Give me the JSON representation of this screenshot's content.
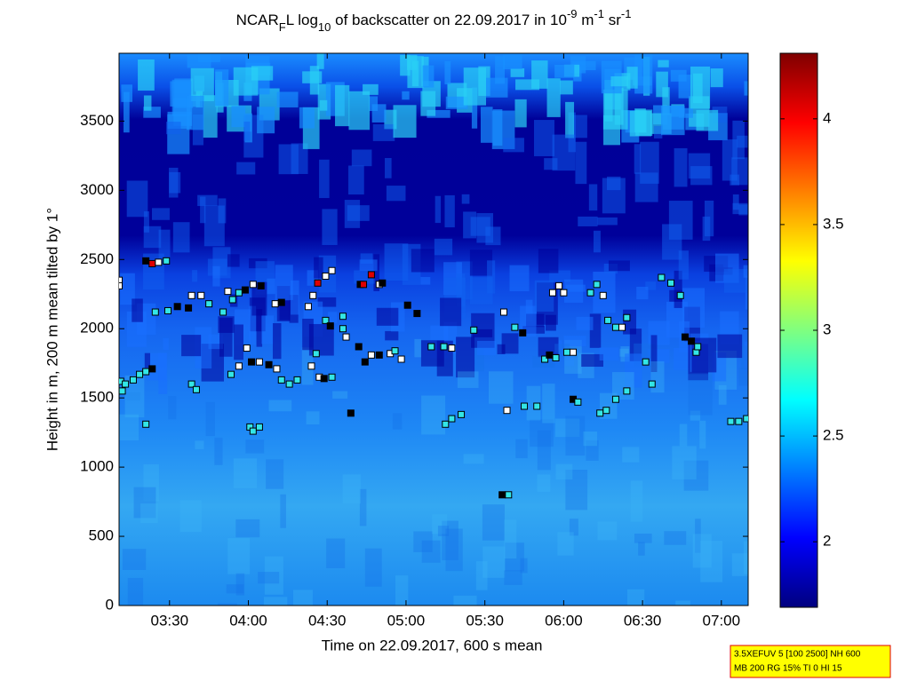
{
  "chart_data": {
    "type": "heatmap-scatter",
    "title": [
      {
        "text": "NCAR",
        "shift": "baseline"
      },
      {
        "text": "F",
        "shift": "sub"
      },
      {
        "text": "L log",
        "shift": "baseline"
      },
      {
        "text": "10",
        "shift": "sub"
      },
      {
        "text": " of backscatter on 22.09.2017 in 10",
        "shift": "baseline"
      },
      {
        "text": "-9",
        "shift": "super"
      },
      {
        "text": " m",
        "shift": "baseline"
      },
      {
        "text": "-1",
        "shift": "super"
      },
      {
        "text": " sr",
        "shift": "baseline"
      },
      {
        "text": "-1",
        "shift": "super"
      }
    ],
    "x_label": "Time on 22.09.2017, 600 s mean",
    "y_label": "Height in m, 200 m mean tilted by 1°",
    "xlim": [
      3.18,
      7.17
    ],
    "xticks": [
      {
        "value": 3.5,
        "label": "03:30"
      },
      {
        "value": 4,
        "label": "04:00"
      },
      {
        "value": 4.5,
        "label": "04:30"
      },
      {
        "value": 5,
        "label": "05:00"
      },
      {
        "value": 5.5,
        "label": "05:30"
      },
      {
        "value": 6,
        "label": "06:00"
      },
      {
        "value": 6.5,
        "label": "06:30"
      },
      {
        "value": 7,
        "label": "07:00"
      }
    ],
    "ylim": [
      0,
      3990
    ],
    "yticks": [
      0,
      500,
      1000,
      1500,
      2000,
      2500,
      3000,
      3500
    ],
    "colorbar": {
      "lim": [
        1.69,
        4.31
      ],
      "ticks": [
        2,
        2.5,
        3,
        3.5,
        4
      ],
      "colormap": "jet"
    },
    "points": {
      "x": [
        3.18,
        3.18,
        3.19,
        3.2,
        3.22,
        3.27,
        3.31,
        3.35,
        3.39,
        3.35,
        3.35,
        3.39,
        3.43,
        3.48,
        3.41,
        3.49,
        3.55,
        3.62,
        3.64,
        3.7,
        3.75,
        3.64,
        3.67,
        3.84,
        3.87,
        3.9,
        3.94,
        3.98,
        4.03,
        4.08,
        3.99,
        4.02,
        4.07,
        4.13,
        4.18,
        3.89,
        3.94,
        4.01,
        4.03,
        4.07,
        4.21,
        4.26,
        4.31,
        4.17,
        4.21,
        4.38,
        4.41,
        4.44,
        4.49,
        4.53,
        4.43,
        4.4,
        4.45,
        4.48,
        4.53,
        4.49,
        4.52,
        4.6,
        4.6,
        4.62,
        4.65,
        4.71,
        4.73,
        4.78,
        4.83,
        4.85,
        4.7,
        4.74,
        4.78,
        4.83,
        4.9,
        4.97,
        4.93,
        5.01,
        5.07,
        5.16,
        5.24,
        5.29,
        5.25,
        5.29,
        5.35,
        5.43,
        5.62,
        5.61,
        5.65,
        5.64,
        5.69,
        5.74,
        5.75,
        5.83,
        5.88,
        5.91,
        5.95,
        6.02,
        6.06,
        5.93,
        5.97,
        6.0,
        6.06,
        6.09,
        6.17,
        6.21,
        6.25,
        6.28,
        6.33,
        6.37,
        6.4,
        6.23,
        6.27,
        6.33,
        6.4,
        6.52,
        6.56,
        6.62,
        6.68,
        6.74,
        6.77,
        6.81,
        6.84,
        6.85,
        7.06,
        7.11,
        7.16
      ],
      "y": [
        2350,
        2310,
        1620,
        1550,
        1600,
        1630,
        1670,
        1690,
        1710,
        1310,
        2490,
        2470,
        2480,
        2490,
        2120,
        2130,
        2160,
        2150,
        2240,
        2240,
        2180,
        1600,
        1560,
        2120,
        2270,
        2210,
        2260,
        2280,
        2320,
        2310,
        1860,
        1760,
        1760,
        1740,
        1710,
        1670,
        1730,
        1290,
        1260,
        1290,
        1630,
        1600,
        1630,
        2180,
        2190,
        2160,
        2240,
        2330,
        2380,
        2420,
        1820,
        1730,
        1650,
        1640,
        1650,
        2060,
        2020,
        2090,
        2000,
        1940,
        1390,
        2320,
        2320,
        2390,
        2320,
        2330,
        1870,
        1760,
        1810,
        1810,
        1820,
        1780,
        1840,
        2170,
        2110,
        1870,
        1870,
        1860,
        1310,
        1350,
        1380,
        1990,
        2120,
        800,
        800,
        1410,
        2010,
        1970,
        1440,
        1440,
        1780,
        1810,
        1790,
        1830,
        1830,
        2260,
        2310,
        2260,
        1490,
        1470,
        2260,
        2320,
        2240,
        2060,
        2010,
        2010,
        2080,
        1390,
        1410,
        1490,
        1550,
        1760,
        1600,
        2370,
        2330,
        2240,
        1940,
        1910,
        1830,
        1870,
        1330,
        1330,
        1350
      ],
      "colors": [
        "#ffffff",
        "#ffffff",
        "#33e6e6",
        "#33e6e6",
        "#33e6e6",
        "#33e6e6",
        "#33e6e6",
        "#33e6e6",
        "#000000",
        "#33e6e6",
        "#000000",
        "#e00000",
        "#ffffff",
        "#33e6e6",
        "#33e6e6",
        "#33e6e6",
        "#000000",
        "#000000",
        "#ffffff",
        "#ffffff",
        "#33e6e6",
        "#33e6e6",
        "#33e6e6",
        "#33e6e6",
        "#ffffff",
        "#33e6e6",
        "#33e6e6",
        "#000000",
        "#ffffff",
        "#000000",
        "#ffffff",
        "#000000",
        "#ffffff",
        "#000000",
        "#ffffff",
        "#33e6e6",
        "#ffffff",
        "#33e6e6",
        "#33e6e6",
        "#33e6e6",
        "#33e6e6",
        "#33e6e6",
        "#33e6e6",
        "#ffffff",
        "#000000",
        "#ffffff",
        "#ffffff",
        "#e00000",
        "#ffffff",
        "#ffffff",
        "#33e6e6",
        "#ffffff",
        "#ffffff",
        "#000000",
        "#33e6e6",
        "#33e6e6",
        "#000000",
        "#33e6e6",
        "#33e6e6",
        "#ffffff",
        "#000000",
        "#000000",
        "#e00000",
        "#e00000",
        "#ffffff",
        "#000000",
        "#000000",
        "#000000",
        "#ffffff",
        "#000000",
        "#ffffff",
        "#ffffff",
        "#33e6e6",
        "#000000",
        "#000000",
        "#33e6e6",
        "#33e6e6",
        "#ffffff",
        "#33e6e6",
        "#33e6e6",
        "#33e6e6",
        "#33e6e6",
        "#ffffff",
        "#000000",
        "#33e6e6",
        "#ffffff",
        "#33e6e6",
        "#000000",
        "#33e6e6",
        "#33e6e6",
        "#33e6e6",
        "#000000",
        "#33e6e6",
        "#33e6e6",
        "#ffffff",
        "#ffffff",
        "#ffffff",
        "#ffffff",
        "#000000",
        "#33e6e6",
        "#33e6e6",
        "#33e6e6",
        "#ffffff",
        "#33e6e6",
        "#33e6e6",
        "#ffffff",
        "#33e6e6",
        "#33e6e6",
        "#33e6e6",
        "#33e6e6",
        "#33e6e6",
        "#33e6e6",
        "#33e6e6",
        "#33e6e6",
        "#33e6e6",
        "#33e6e6",
        "#000000",
        "#000000",
        "#33e6e6",
        "#33e6e6",
        "#33e6e6",
        "#33e6e6",
        "#33e6e6"
      ]
    },
    "footer": [
      "3.5XEFUV 5 [100 2500] NH 600",
      "MB 200 RG 15% TI 0 HI 15"
    ]
  }
}
